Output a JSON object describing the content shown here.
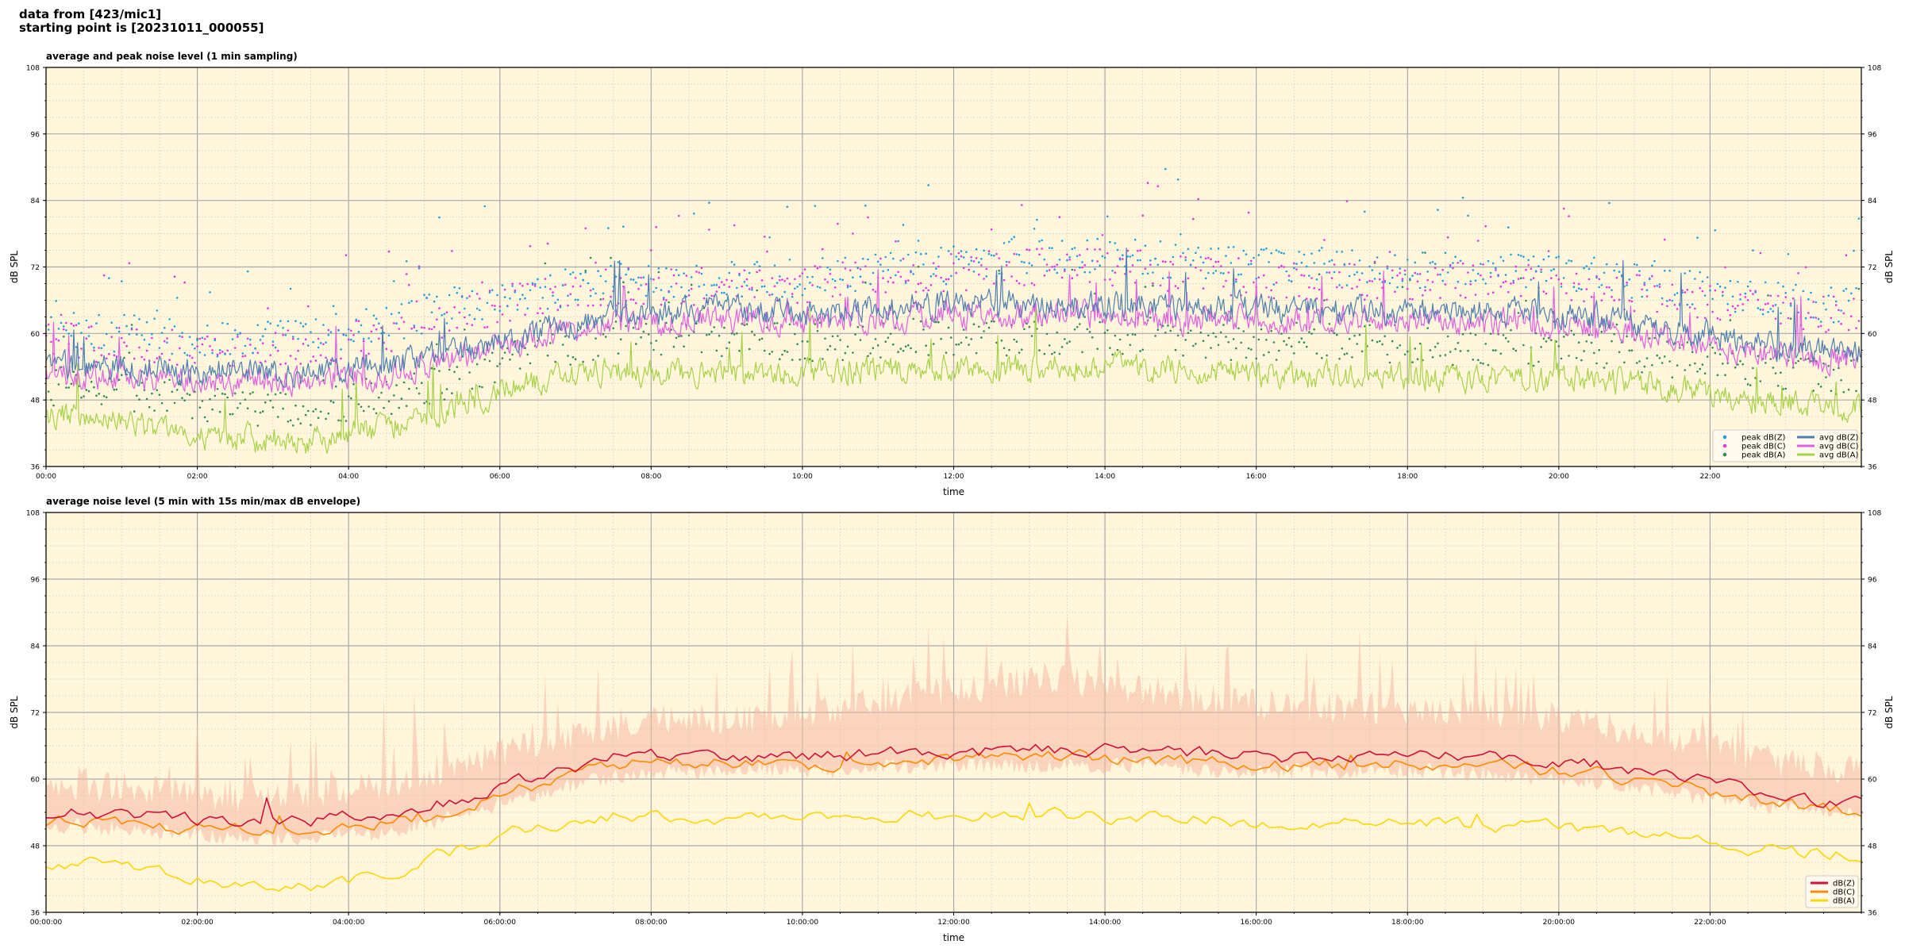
{
  "header": {
    "line1": "data from [423/mic1]",
    "line2": "starting point is [20231011_000055]"
  },
  "chart_data": [
    {
      "type": "line",
      "title": "average and peak noise level (1 min sampling)",
      "xlabel": "time",
      "ylabel": "dB SPL",
      "ylim": [
        36,
        108
      ],
      "xlim_hours": [
        0,
        24
      ],
      "yticks": [
        36,
        48,
        60,
        72,
        84,
        96,
        108
      ],
      "xtick_labels": [
        "00:00",
        "02:00",
        "04:00",
        "06:00",
        "08:00",
        "10:00",
        "12:00",
        "14:00",
        "16:00",
        "18:00",
        "20:00",
        "22:00"
      ],
      "grid": true,
      "background_color": "#fff6dc",
      "legend_position": "lower-right",
      "legend_columns": 2,
      "resolution_minutes": 1,
      "series": [
        {
          "name": "peak dB(Z)",
          "kind": "scatter",
          "color": "#1f9fe0",
          "hourly_values": [
            60,
            59,
            58,
            59,
            61,
            65,
            67,
            69,
            69,
            69,
            70,
            71,
            73,
            74,
            73,
            72,
            71,
            71,
            71,
            71,
            70,
            68,
            66,
            65
          ]
        },
        {
          "name": "peak dB(C)",
          "kind": "scatter",
          "color": "#e832e8",
          "hourly_values": [
            58,
            57,
            56,
            57,
            59,
            63,
            66,
            68,
            68,
            68,
            69,
            70,
            71,
            72,
            71,
            70,
            69,
            69,
            69,
            69,
            68,
            66,
            64,
            63
          ]
        },
        {
          "name": "peak dB(A)",
          "kind": "scatter",
          "color": "#2e8b57",
          "hourly_values": [
            50,
            48,
            46,
            46,
            48,
            52,
            56,
            59,
            59,
            58,
            58,
            59,
            59,
            59,
            59,
            58,
            58,
            58,
            57,
            57,
            57,
            55,
            53,
            52
          ]
        },
        {
          "name": "avg dB(Z)",
          "kind": "line",
          "color": "#4e7fb0",
          "hourly_values": [
            54,
            53.5,
            53,
            53,
            54,
            57,
            60.5,
            63,
            64,
            64,
            64,
            65,
            65.5,
            65.5,
            65,
            64.5,
            64.5,
            64,
            64,
            64,
            63,
            61,
            58.5,
            57
          ]
        },
        {
          "name": "avg dB(C)",
          "kind": "line",
          "color": "#e060e0",
          "hourly_values": [
            52.5,
            52,
            51.5,
            51.5,
            52.5,
            55.5,
            59.5,
            62,
            62.5,
            62.5,
            62.5,
            63,
            63.5,
            63.5,
            63,
            62.5,
            62.5,
            62.5,
            62.5,
            62,
            61,
            59,
            57,
            55.5
          ]
        },
        {
          "name": "avg dB(A)",
          "kind": "line",
          "color": "#a6d24a",
          "hourly_values": [
            45,
            42.5,
            41,
            40.5,
            43,
            47.5,
            51.5,
            53.5,
            53,
            52.5,
            53,
            54,
            54,
            54,
            53.5,
            53,
            52.5,
            52.5,
            52,
            52,
            52,
            50,
            48,
            47
          ]
        }
      ]
    },
    {
      "type": "line",
      "title": "average noise level (5 min with 15s min/max dB envelope)",
      "xlabel": "time",
      "ylabel": "dB SPL",
      "ylim": [
        36,
        108
      ],
      "xlim_hours": [
        0,
        24
      ],
      "yticks": [
        36,
        48,
        60,
        72,
        84,
        96,
        108
      ],
      "xtick_labels": [
        "00:00:00",
        "02:00:00",
        "04:00:00",
        "06:00:00",
        "08:00:00",
        "10:00:00",
        "12:00:00",
        "14:00:00",
        "16:00:00",
        "18:00:00",
        "20:00:00",
        "22:00:00"
      ],
      "grid": true,
      "background_color": "#fff6dc",
      "legend_position": "lower-right",
      "legend_columns": 1,
      "resolution_minutes": 5,
      "envelope": {
        "color": "#f5b8a3",
        "description_values": "15s min/max of dB(Z)",
        "hourly_max": [
          62,
          61,
          60,
          60,
          62,
          66,
          70,
          73,
          74,
          74,
          76,
          78,
          80,
          81,
          79,
          77,
          76,
          76,
          75,
          75,
          73,
          70,
          67,
          65
        ],
        "hourly_min": [
          50,
          49,
          48,
          48,
          49,
          52,
          56,
          59,
          60,
          60,
          60,
          61,
          61,
          61,
          61,
          60,
          60,
          60,
          60,
          59,
          58,
          56,
          54,
          53
        ]
      },
      "series": [
        {
          "name": "dB(Z)",
          "kind": "line",
          "color": "#d0103a",
          "hourly_values": [
            54,
            53,
            52.5,
            52.5,
            53.5,
            56.5,
            60.5,
            64,
            64.5,
            64,
            64,
            65,
            65,
            65.5,
            65,
            64.5,
            64,
            64,
            64,
            63.5,
            62.5,
            60.5,
            58,
            56
          ]
        },
        {
          "name": "dB(C)",
          "kind": "line",
          "color": "#ff8c00",
          "hourly_values": [
            52.5,
            51.5,
            51,
            51,
            52,
            55,
            59,
            62.5,
            63,
            62.5,
            62.5,
            63.5,
            63.5,
            64,
            63.5,
            63,
            62.5,
            62.5,
            62.5,
            62,
            61,
            59,
            56.5,
            54.5
          ]
        },
        {
          "name": "dB(A)",
          "kind": "line",
          "color": "#ffd700",
          "hourly_values": [
            45,
            43,
            41.5,
            40.5,
            43,
            47.5,
            51.5,
            53.5,
            53,
            52.5,
            53,
            53.5,
            53.5,
            53.5,
            53,
            52.5,
            52,
            52,
            52,
            51.5,
            51,
            49.5,
            47.5,
            46.5
          ]
        }
      ]
    }
  ]
}
